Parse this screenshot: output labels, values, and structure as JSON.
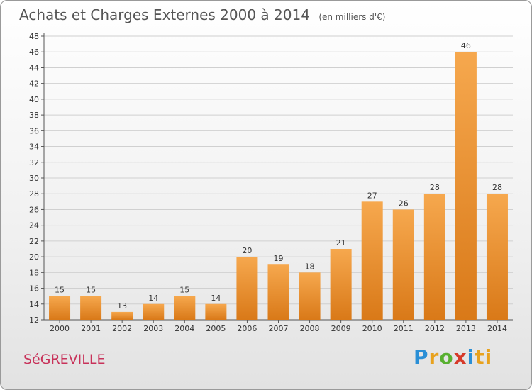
{
  "header": {
    "title": "Achats et Charges Externes 2000 à 2014",
    "subtitle": "(en milliers d'€)"
  },
  "commune": "SéGREVILLE",
  "logo": {
    "text": "Proxiti",
    "letters": [
      "P",
      "r",
      "o",
      "x",
      "i",
      "ti"
    ]
  },
  "colors": {
    "bar_light": "#f6a84e",
    "bar_dark": "#d97918",
    "grid": "#d0d0d0",
    "commune_text": "#c8325a"
  },
  "chart_data": {
    "type": "bar",
    "title": "Achats et Charges Externes 2000 à 2014",
    "subtitle": "(en milliers d'€)",
    "categories": [
      "2000",
      "2001",
      "2002",
      "2003",
      "2004",
      "2005",
      "2006",
      "2007",
      "2008",
      "2009",
      "2010",
      "2011",
      "2012",
      "2013",
      "2014"
    ],
    "values": [
      15,
      15,
      13,
      14,
      15,
      14,
      20,
      19,
      18,
      21,
      27,
      26,
      28,
      46,
      28
    ],
    "value_labels": [
      "15",
      "15",
      "13",
      "14",
      "15",
      "14",
      "20",
      "19",
      "18",
      "21",
      "27",
      "26",
      "28",
      "46",
      "28"
    ],
    "ylim": [
      12,
      48
    ],
    "yticks": [
      "12",
      "14",
      "16",
      "18",
      "20",
      "22",
      "24",
      "26",
      "28",
      "30",
      "32",
      "34",
      "36",
      "38",
      "40",
      "42",
      "44",
      "46",
      "48"
    ],
    "xlabel": "",
    "ylabel": "",
    "grid": true
  }
}
